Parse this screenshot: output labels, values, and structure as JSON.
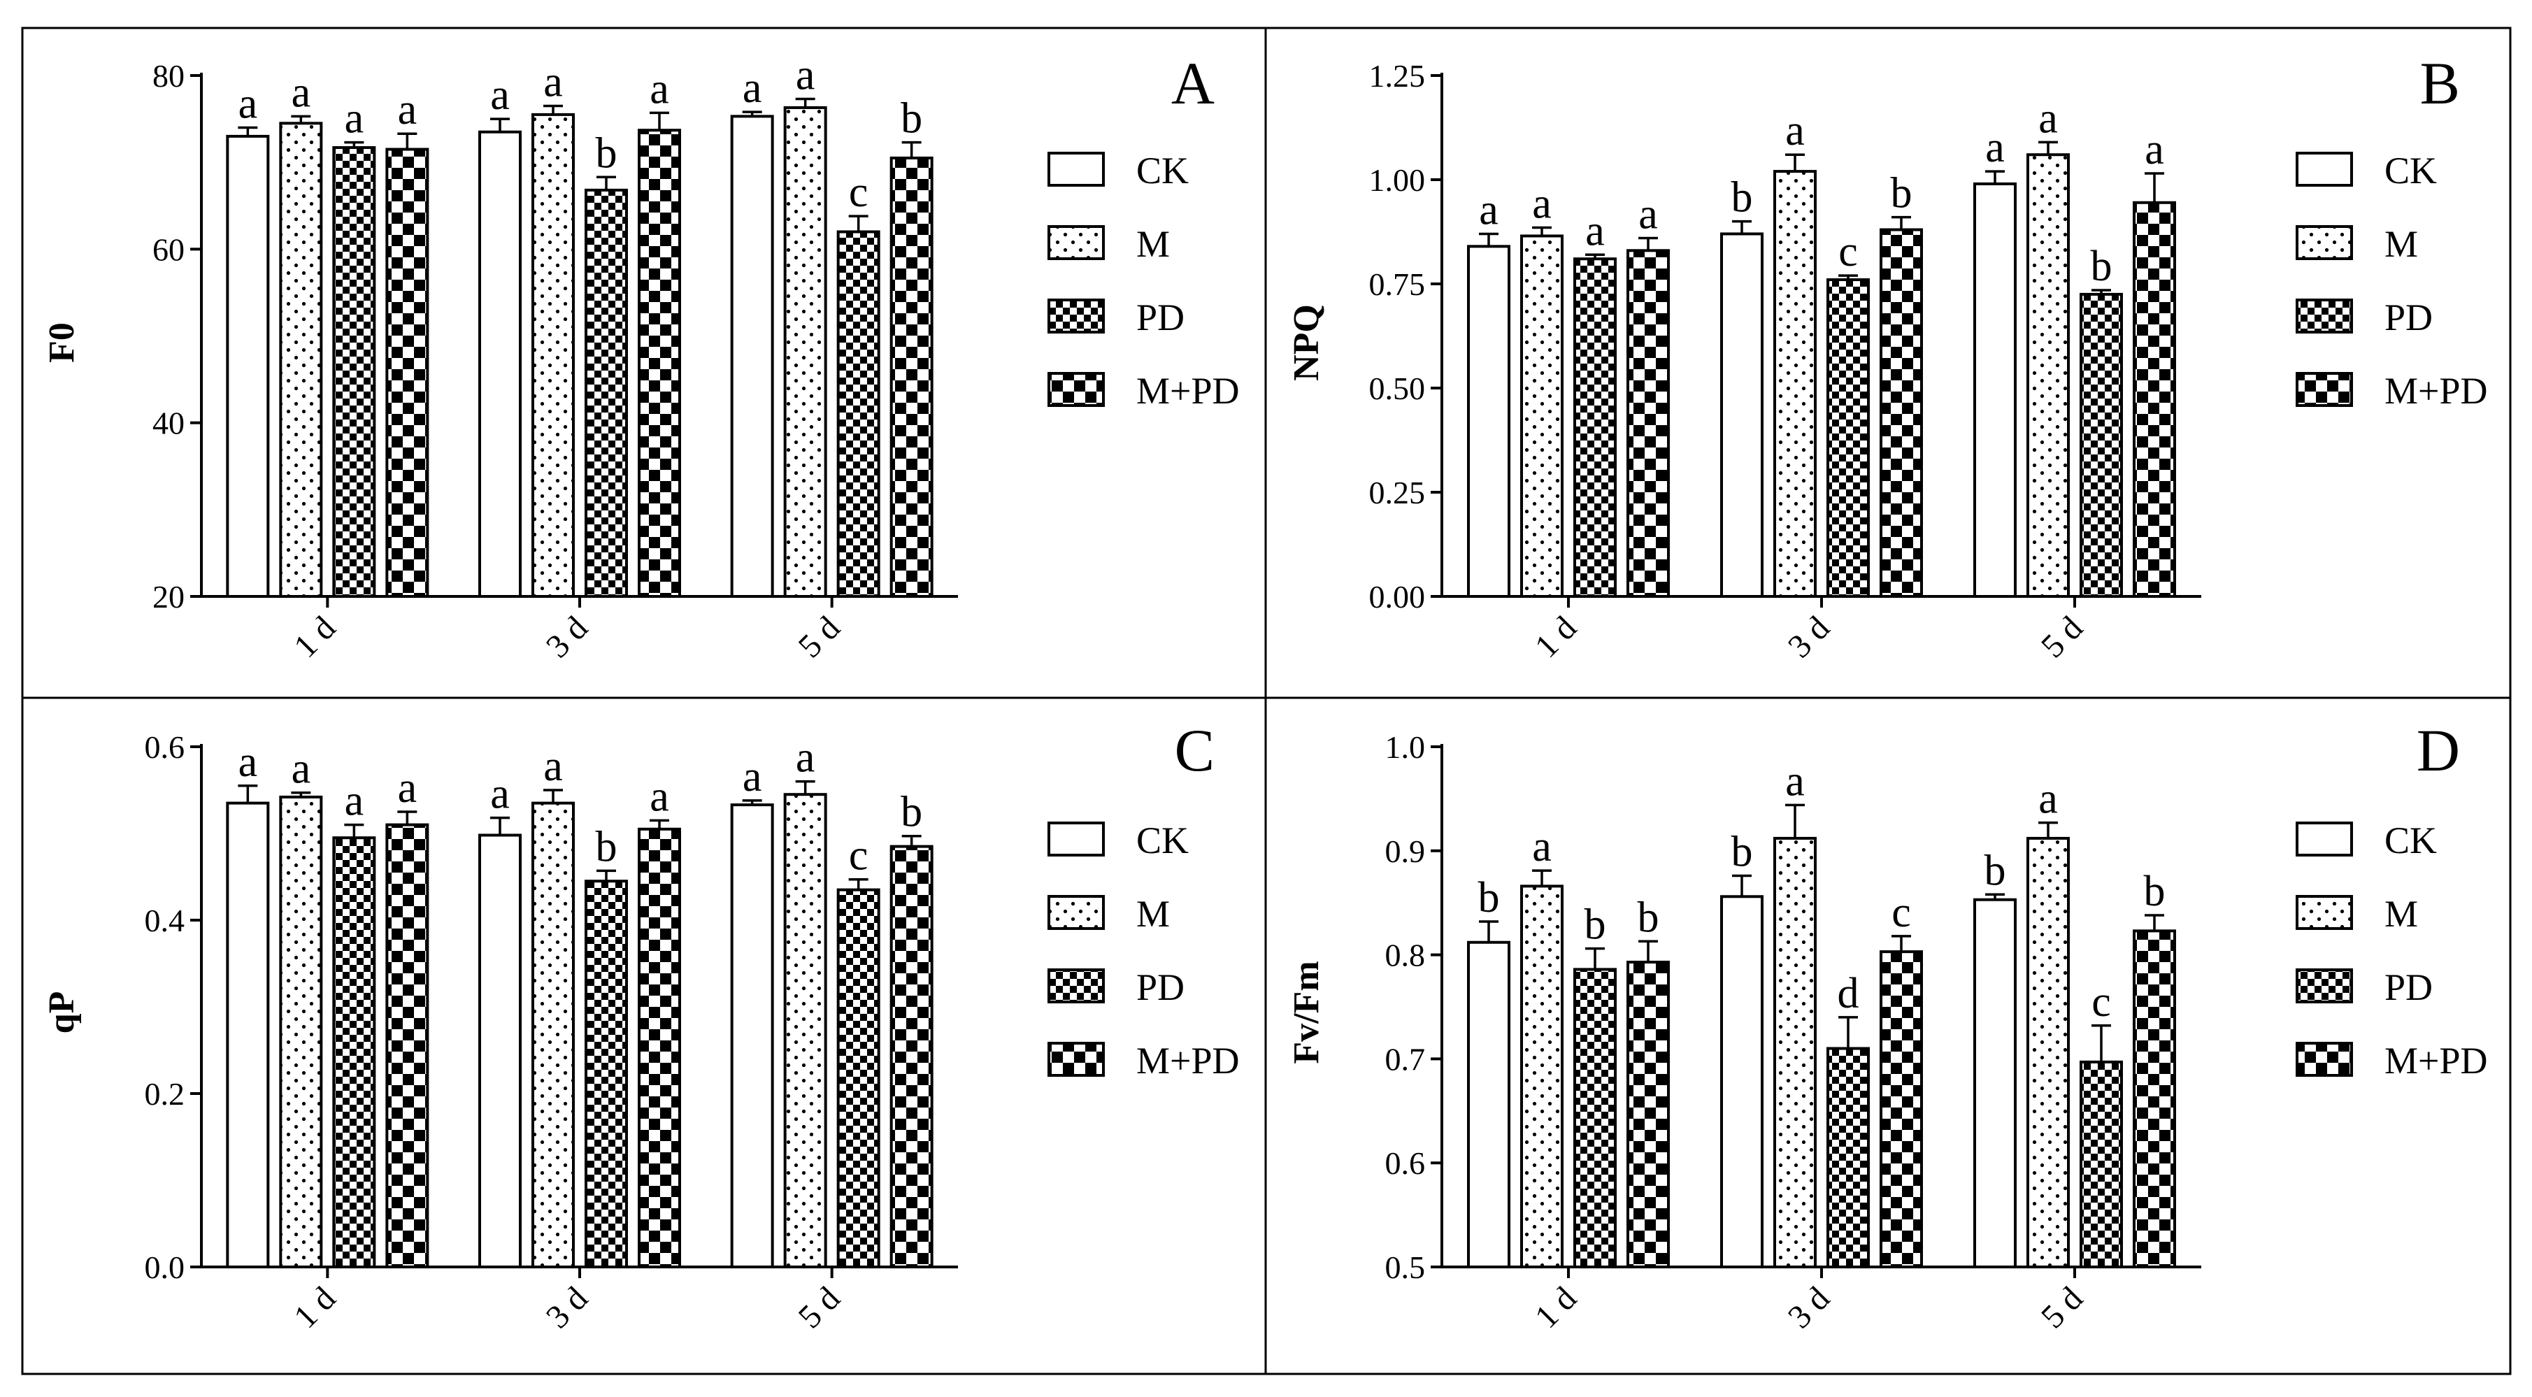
{
  "figure": {
    "series_names": [
      "CK",
      "M",
      "PD",
      "M+PD"
    ],
    "pattern_names": [
      "blank",
      "dots",
      "check-small",
      "check-large"
    ]
  },
  "chart_data": [
    {
      "type": "bar",
      "panel": "A",
      "ylabel": "F0",
      "ylim": [
        20,
        80
      ],
      "yticks": [
        20,
        40,
        60,
        80
      ],
      "yticklabels": [
        "20",
        "40",
        "60",
        "80"
      ],
      "categories": [
        "1 d",
        "3 d",
        "5 d"
      ],
      "series": [
        {
          "name": "CK",
          "values": [
            73.0,
            73.5,
            75.3
          ],
          "errors": [
            1.0,
            1.5,
            0.5
          ],
          "letters": [
            "a",
            "a",
            "a"
          ]
        },
        {
          "name": "M",
          "values": [
            74.5,
            75.5,
            76.3
          ],
          "errors": [
            0.8,
            1.0,
            1.0
          ],
          "letters": [
            "a",
            "a",
            "a"
          ]
        },
        {
          "name": "PD",
          "values": [
            71.7,
            66.8,
            62.0
          ],
          "errors": [
            0.6,
            1.5,
            1.8
          ],
          "letters": [
            "a",
            "b",
            "c"
          ]
        },
        {
          "name": "M+PD",
          "values": [
            71.5,
            73.7,
            70.5
          ],
          "errors": [
            1.8,
            2.0,
            1.8
          ],
          "letters": [
            "a",
            "a",
            "b"
          ]
        }
      ]
    },
    {
      "type": "bar",
      "panel": "B",
      "ylabel": "NPQ",
      "ylim": [
        0,
        1.25
      ],
      "yticks": [
        0,
        0.25,
        0.5,
        0.75,
        1.0,
        1.25
      ],
      "yticklabels": [
        "0.00",
        "0.25",
        "0.50",
        "0.75",
        "1.00",
        "1.25"
      ],
      "categories": [
        "1 d",
        "3 d",
        "5 d"
      ],
      "series": [
        {
          "name": "CK",
          "values": [
            0.84,
            0.87,
            0.99
          ],
          "errors": [
            0.03,
            0.03,
            0.03
          ],
          "letters": [
            "a",
            "b",
            "a"
          ]
        },
        {
          "name": "M",
          "values": [
            0.865,
            1.02,
            1.06
          ],
          "errors": [
            0.02,
            0.04,
            0.03
          ],
          "letters": [
            "a",
            "a",
            "a"
          ]
        },
        {
          "name": "PD",
          "values": [
            0.81,
            0.76,
            0.725
          ],
          "errors": [
            0.01,
            0.01,
            0.01
          ],
          "letters": [
            "a",
            "c",
            "b"
          ]
        },
        {
          "name": "M+PD",
          "values": [
            0.83,
            0.88,
            0.945
          ],
          "errors": [
            0.03,
            0.03,
            0.07
          ],
          "letters": [
            "a",
            "b",
            "a"
          ]
        }
      ]
    },
    {
      "type": "bar",
      "panel": "C",
      "ylabel": "qP",
      "ylim": [
        0,
        0.6
      ],
      "yticks": [
        0,
        0.2,
        0.4,
        0.6
      ],
      "yticklabels": [
        "0.0",
        "0.2",
        "0.4",
        "0.6"
      ],
      "categories": [
        "1 d",
        "3 d",
        "5 d"
      ],
      "series": [
        {
          "name": "CK",
          "values": [
            0.535,
            0.498,
            0.533
          ],
          "errors": [
            0.02,
            0.02,
            0.005
          ],
          "letters": [
            "a",
            "a",
            "a"
          ]
        },
        {
          "name": "M",
          "values": [
            0.542,
            0.535,
            0.545
          ],
          "errors": [
            0.005,
            0.015,
            0.015
          ],
          "letters": [
            "a",
            "a",
            "a"
          ]
        },
        {
          "name": "PD",
          "values": [
            0.495,
            0.445,
            0.435
          ],
          "errors": [
            0.015,
            0.012,
            0.012
          ],
          "letters": [
            "a",
            "b",
            "c"
          ]
        },
        {
          "name": "M+PD",
          "values": [
            0.51,
            0.505,
            0.485
          ],
          "errors": [
            0.015,
            0.01,
            0.012
          ],
          "letters": [
            "a",
            "a",
            "b"
          ]
        }
      ]
    },
    {
      "type": "bar",
      "panel": "D",
      "ylabel": "Fv/Fm",
      "ylim": [
        0.5,
        1.0
      ],
      "yticks": [
        0.5,
        0.6,
        0.7,
        0.8,
        0.9,
        1.0
      ],
      "yticklabels": [
        "0.5",
        "0.6",
        "0.7",
        "0.8",
        "0.9",
        "1.0"
      ],
      "categories": [
        "1 d",
        "3 d",
        "5 d"
      ],
      "series": [
        {
          "name": "CK",
          "values": [
            0.812,
            0.856,
            0.853
          ],
          "errors": [
            0.02,
            0.02,
            0.005
          ],
          "letters": [
            "b",
            "b",
            "b"
          ]
        },
        {
          "name": "M",
          "values": [
            0.866,
            0.912,
            0.912
          ],
          "errors": [
            0.015,
            0.032,
            0.015
          ],
          "letters": [
            "a",
            "a",
            "a"
          ]
        },
        {
          "name": "PD",
          "values": [
            0.786,
            0.71,
            0.697
          ],
          "errors": [
            0.02,
            0.03,
            0.035
          ],
          "letters": [
            "b",
            "d",
            "c"
          ]
        },
        {
          "name": "M+PD",
          "values": [
            0.793,
            0.803,
            0.823
          ],
          "errors": [
            0.02,
            0.015,
            0.015
          ],
          "letters": [
            "b",
            "c",
            "b"
          ]
        }
      ]
    }
  ]
}
